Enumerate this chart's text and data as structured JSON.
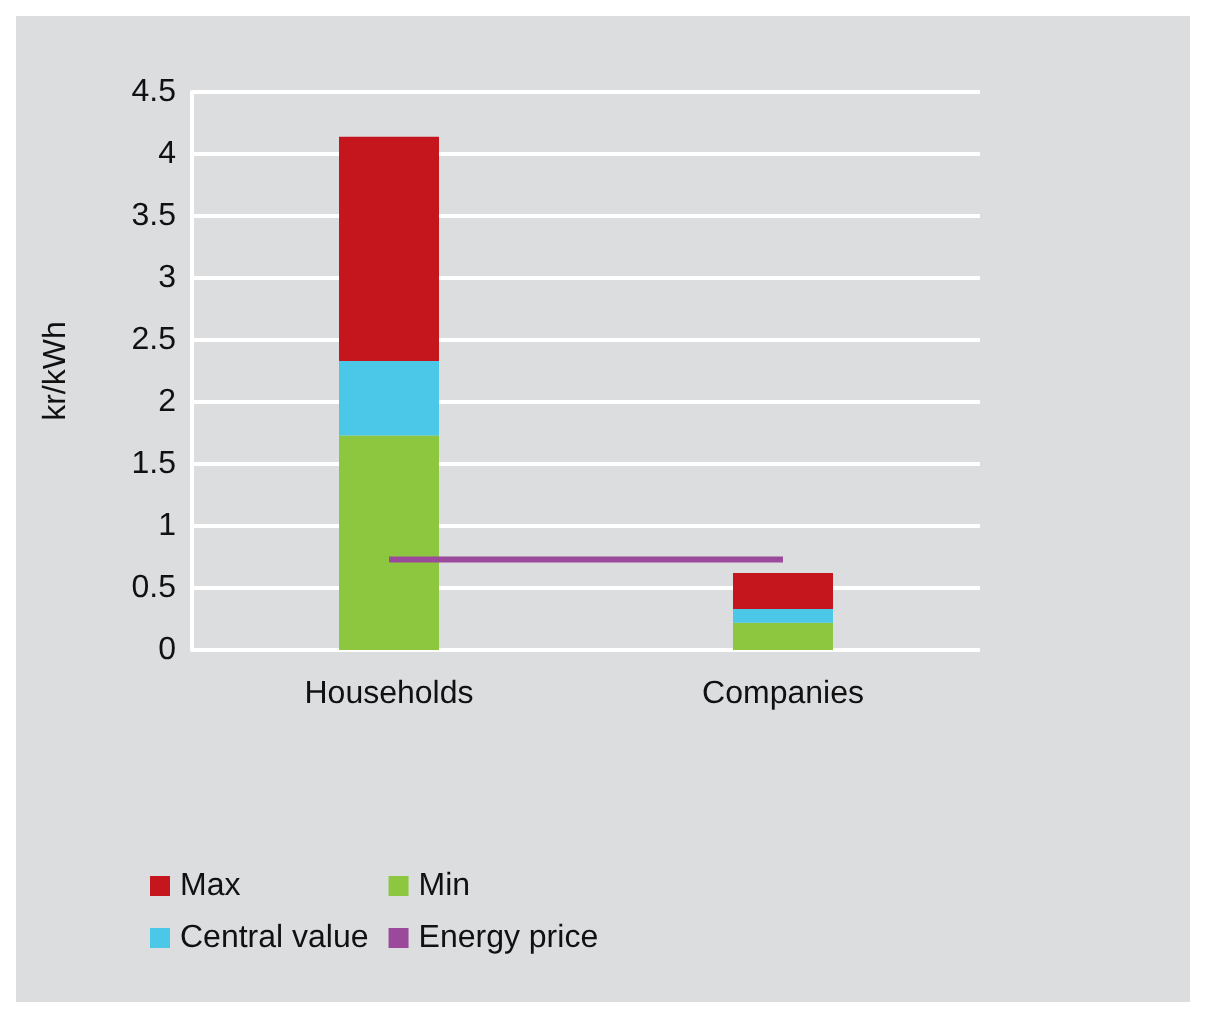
{
  "chart_data": {
    "type": "bar",
    "ylabel": "kr/kWh",
    "categories": [
      "Households",
      "Companies"
    ],
    "stacked": true,
    "series": [
      {
        "name": "Min",
        "color": "#8dc63f",
        "values": [
          1.73,
          0.22
        ]
      },
      {
        "name": "Central value",
        "color": "#4bc8e8",
        "values": [
          0.6,
          0.11
        ]
      },
      {
        "name": "Max",
        "color": "#c4161c",
        "values": [
          1.81,
          0.29
        ]
      },
      {
        "name": "Energy price",
        "type": "line",
        "color": "#9b4a9b",
        "values": [
          0.73,
          0.73
        ]
      }
    ],
    "ylim": [
      0,
      4.5
    ],
    "yticks": [
      0,
      0.5,
      1,
      1.5,
      2,
      2.5,
      3,
      3.5,
      4,
      4.5
    ],
    "grid": "y",
    "legend": "bottom",
    "marker": "none"
  }
}
